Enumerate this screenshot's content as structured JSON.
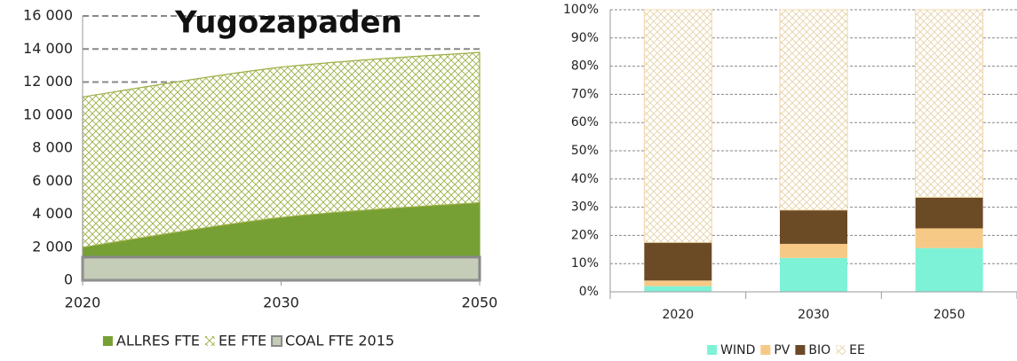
{
  "chart_data": [
    {
      "type": "area",
      "title": "Yugozapaden",
      "stacked": true,
      "categories": [
        "2020",
        "2030",
        "2050"
      ],
      "ylim": [
        0,
        16000
      ],
      "yticks": [
        0,
        {
          "value": 2000,
          "label": "2 000"
        },
        {
          "value": 4000,
          "label": "4 000"
        },
        {
          "value": 6000,
          "label": "6 000"
        },
        {
          "value": 8000,
          "label": "8 000"
        },
        {
          "value": 10000,
          "label": "10 000"
        },
        {
          "value": 12000,
          "label": "12 000"
        },
        {
          "value": 14000,
          "label": "14 000"
        },
        {
          "value": 16000,
          "label": "16 000"
        }
      ],
      "grid": true,
      "series": [
        {
          "name": "ALLRES FTE",
          "color": "#76a034",
          "values": [
            2000,
            3800,
            4700
          ]
        },
        {
          "name": "EE FTE",
          "color": "#9cb045",
          "pattern": "crosshatch",
          "values": [
            9100,
            9100,
            9100
          ]
        },
        {
          "name": "COAL FTE 2015",
          "color": "#c5ccb8",
          "stacked": false,
          "values": [
            1400,
            1400,
            1400
          ]
        }
      ]
    },
    {
      "type": "bar",
      "stacked": true,
      "categories": [
        "2020",
        "2030",
        "2050"
      ],
      "ylim": [
        0,
        100
      ],
      "yticks": [
        {
          "value": 0,
          "label": "0%"
        },
        {
          "value": 10,
          "label": "10%"
        },
        {
          "value": 20,
          "label": "20%"
        },
        {
          "value": 30,
          "label": "30%"
        },
        {
          "value": 40,
          "label": "40%"
        },
        {
          "value": 50,
          "label": "50%"
        },
        {
          "value": 60,
          "label": "60%"
        },
        {
          "value": 70,
          "label": "70%"
        },
        {
          "value": 80,
          "label": "80%"
        },
        {
          "value": 90,
          "label": "90%"
        },
        {
          "value": 100,
          "label": "100%"
        }
      ],
      "grid": true,
      "series": [
        {
          "name": "WIND",
          "color": "#7ef2d6",
          "values": [
            2,
            12,
            15.5
          ]
        },
        {
          "name": "PV",
          "color": "#f6c987",
          "values": [
            2,
            5,
            7
          ]
        },
        {
          "name": "BIO",
          "color": "#6b4a26",
          "values": [
            13.5,
            12,
            11
          ]
        },
        {
          "name": "EE",
          "color": "#e6d2aa",
          "pattern": "crosshatch",
          "values": [
            82.5,
            71,
            66.5
          ]
        }
      ]
    }
  ]
}
